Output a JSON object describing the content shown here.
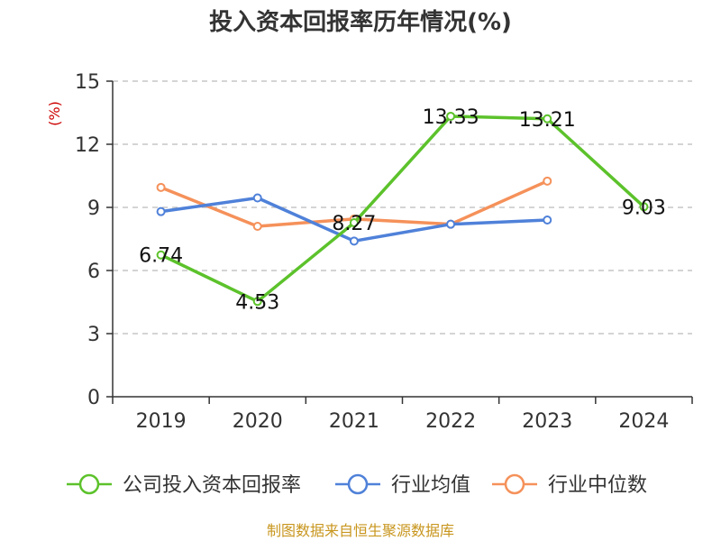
{
  "chart_data": {
    "type": "line",
    "title": "投入资本回报率历年情况(%)",
    "ylabel": "(%)",
    "categories": [
      "2019",
      "2020",
      "2021",
      "2022",
      "2023",
      "2024"
    ],
    "ylim": [
      0,
      15
    ],
    "yticks": [
      0,
      3,
      6,
      9,
      12,
      15
    ],
    "grid": true,
    "legend_position": "bottom",
    "series": [
      {
        "name": "公司投入资本回报率",
        "color": "#5cc22b",
        "values": [
          6.74,
          4.53,
          8.27,
          13.33,
          13.21,
          9.03
        ],
        "labels": [
          "6.74",
          "4.53",
          "8.27",
          "13.33",
          "13.21",
          "9.03"
        ]
      },
      {
        "name": "行业均值",
        "color": "#4f81d9",
        "values": [
          8.8,
          9.45,
          7.4,
          8.2,
          8.4,
          null
        ]
      },
      {
        "name": "行业中位数",
        "color": "#f5915a",
        "values": [
          9.95,
          8.1,
          8.45,
          8.2,
          10.25,
          null
        ]
      }
    ]
  },
  "source": "制图数据来自恒生聚源数据库"
}
